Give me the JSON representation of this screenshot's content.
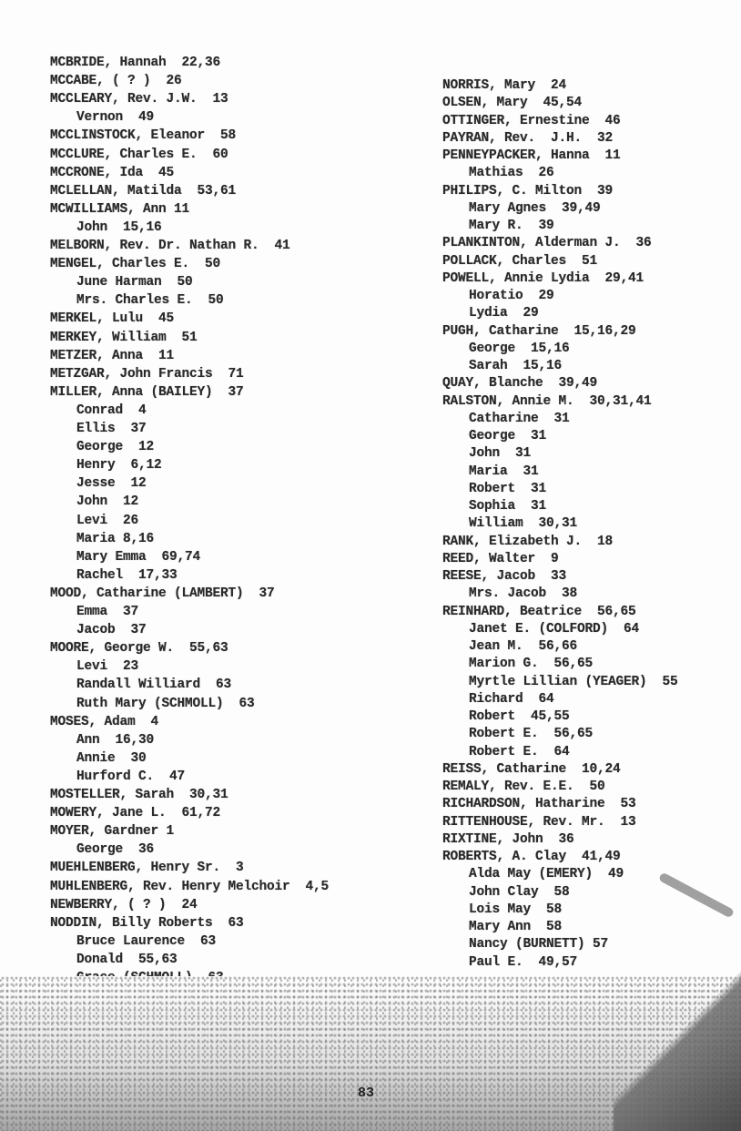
{
  "left_column": [
    {
      "text": "MCBRIDE, Hannah  22,36",
      "indent": false
    },
    {
      "text": "MCCABE, ( ? )  26",
      "indent": false
    },
    {
      "text": "MCCLEARY, Rev. J.W.  13",
      "indent": false
    },
    {
      "text": "Vernon  49",
      "indent": true
    },
    {
      "text": "MCCLINSTOCK, Eleanor  58",
      "indent": false
    },
    {
      "text": "MCCLURE, Charles E.  60",
      "indent": false
    },
    {
      "text": "MCCRONE, Ida  45",
      "indent": false
    },
    {
      "text": "MCLELLAN, Matilda  53,61",
      "indent": false
    },
    {
      "text": "MCWILLIAMS, Ann 11",
      "indent": false
    },
    {
      "text": "John  15,16",
      "indent": true
    },
    {
      "text": "MELBORN, Rev. Dr. Nathan R.  41",
      "indent": false
    },
    {
      "text": "MENGEL, Charles E.  50",
      "indent": false
    },
    {
      "text": "June Harman  50",
      "indent": true
    },
    {
      "text": "Mrs. Charles E.  50",
      "indent": true
    },
    {
      "text": "MERKEL, Lulu  45",
      "indent": false
    },
    {
      "text": "MERKEY, William  51",
      "indent": false
    },
    {
      "text": "METZER, Anna  11",
      "indent": false
    },
    {
      "text": "METZGAR, John Francis  71",
      "indent": false
    },
    {
      "text": "MILLER, Anna (BAILEY)  37",
      "indent": false
    },
    {
      "text": "Conrad  4",
      "indent": true
    },
    {
      "text": "Ellis  37",
      "indent": true
    },
    {
      "text": "George  12",
      "indent": true
    },
    {
      "text": "Henry  6,12",
      "indent": true
    },
    {
      "text": "Jesse  12",
      "indent": true
    },
    {
      "text": "John  12",
      "indent": true
    },
    {
      "text": "Levi  26",
      "indent": true
    },
    {
      "text": "Maria 8,16",
      "indent": true
    },
    {
      "text": "Mary Emma  69,74",
      "indent": true
    },
    {
      "text": "Rachel  17,33",
      "indent": true
    },
    {
      "text": "MOOD, Catharine (LAMBERT)  37",
      "indent": false
    },
    {
      "text": "Emma  37",
      "indent": true
    },
    {
      "text": "Jacob  37",
      "indent": true
    },
    {
      "text": "MOORE, George W.  55,63",
      "indent": false
    },
    {
      "text": "Levi  23",
      "indent": true
    },
    {
      "text": "Randall Williard  63",
      "indent": true
    },
    {
      "text": "Ruth Mary (SCHMOLL)  63",
      "indent": true
    },
    {
      "text": "MOSES, Adam  4",
      "indent": false
    },
    {
      "text": "Ann  16,30",
      "indent": true
    },
    {
      "text": "Annie  30",
      "indent": true
    },
    {
      "text": "Hurford C.  47",
      "indent": true
    },
    {
      "text": "MOSTELLER, Sarah  30,31",
      "indent": false
    },
    {
      "text": "MOWERY, Jane L.  61,72",
      "indent": false
    },
    {
      "text": "MOYER, Gardner 1",
      "indent": false
    },
    {
      "text": "George  36",
      "indent": true
    },
    {
      "text": "MUEHLENBERG, Henry Sr.  3",
      "indent": false
    },
    {
      "text": "MUHLENBERG, Rev. Henry Melchoir  4,5",
      "indent": false
    },
    {
      "text": "NEWBERRY, ( ? )  24",
      "indent": false
    },
    {
      "text": "NODDIN, Billy Roberts  63",
      "indent": false
    },
    {
      "text": "Bruce Laurence  63",
      "indent": true
    },
    {
      "text": "Donald  55,63",
      "indent": true
    },
    {
      "text": "Grace (SCHMOLL)  63",
      "indent": true
    }
  ],
  "right_column": [
    {
      "text": "NORRIS, Mary  24",
      "indent": false
    },
    {
      "text": "OLSEN, Mary  45,54",
      "indent": false
    },
    {
      "text": "OTTINGER, Ernestine  46",
      "indent": false
    },
    {
      "text": "PAYRAN, Rev.  J.H.  32",
      "indent": false
    },
    {
      "text": "PENNEYPACKER, Hanna  11",
      "indent": false
    },
    {
      "text": "Mathias  26",
      "indent": true
    },
    {
      "text": "PHILIPS, C. Milton  39",
      "indent": false
    },
    {
      "text": "Mary Agnes  39,49",
      "indent": true
    },
    {
      "text": "Mary R.  39",
      "indent": true
    },
    {
      "text": "PLANKINTON, Alderman J.  36",
      "indent": false
    },
    {
      "text": "POLLACK, Charles  51",
      "indent": false
    },
    {
      "text": "POWELL, Annie Lydia  29,41",
      "indent": false
    },
    {
      "text": "Horatio  29",
      "indent": true
    },
    {
      "text": "Lydia  29",
      "indent": true
    },
    {
      "text": "PUGH, Catharine  15,16,29",
      "indent": false
    },
    {
      "text": "George  15,16",
      "indent": true
    },
    {
      "text": "Sarah  15,16",
      "indent": true
    },
    {
      "text": "QUAY, Blanche  39,49",
      "indent": false
    },
    {
      "text": "RALSTON, Annie M.  30,31,41",
      "indent": false
    },
    {
      "text": "Catharine  31",
      "indent": true
    },
    {
      "text": "George  31",
      "indent": true
    },
    {
      "text": "John  31",
      "indent": true
    },
    {
      "text": "Maria  31",
      "indent": true
    },
    {
      "text": "Robert  31",
      "indent": true
    },
    {
      "text": "Sophia  31",
      "indent": true
    },
    {
      "text": "William  30,31",
      "indent": true
    },
    {
      "text": "RANK, Elizabeth J.  18",
      "indent": false
    },
    {
      "text": "REED, Walter  9",
      "indent": false
    },
    {
      "text": "REESE, Jacob  33",
      "indent": false
    },
    {
      "text": "Mrs. Jacob  38",
      "indent": true
    },
    {
      "text": "REINHARD, Beatrice  56,65",
      "indent": false
    },
    {
      "text": "Janet E. (COLFORD)  64",
      "indent": true
    },
    {
      "text": "Jean M.  56,66",
      "indent": true
    },
    {
      "text": "Marion G.  56,65",
      "indent": true
    },
    {
      "text": "Myrtle Lillian (YEAGER)  55",
      "indent": true
    },
    {
      "text": "Richard  64",
      "indent": true
    },
    {
      "text": "Robert  45,55",
      "indent": true
    },
    {
      "text": "Robert E.  56,65",
      "indent": true
    },
    {
      "text": "Robert E.  64",
      "indent": true
    },
    {
      "text": "REISS, Catharine  10,24",
      "indent": false
    },
    {
      "text": "REMALY, Rev. E.E.  50",
      "indent": false
    },
    {
      "text": "RICHARDSON, Hatharine  53",
      "indent": false
    },
    {
      "text": "RITTENHOUSE, Rev. Mr.  13",
      "indent": false
    },
    {
      "text": "RIXTINE, John  36",
      "indent": false
    },
    {
      "text": "ROBERTS, A. Clay  41,49",
      "indent": false
    },
    {
      "text": "Alda May (EMERY)  49",
      "indent": true
    },
    {
      "text": "John Clay  58",
      "indent": true
    },
    {
      "text": "Lois May  58",
      "indent": true
    },
    {
      "text": "Mary Ann  58",
      "indent": true
    },
    {
      "text": "Nancy (BURNETT) 57",
      "indent": true
    },
    {
      "text": "Paul E.  49,57",
      "indent": true
    }
  ],
  "page_number": "83"
}
